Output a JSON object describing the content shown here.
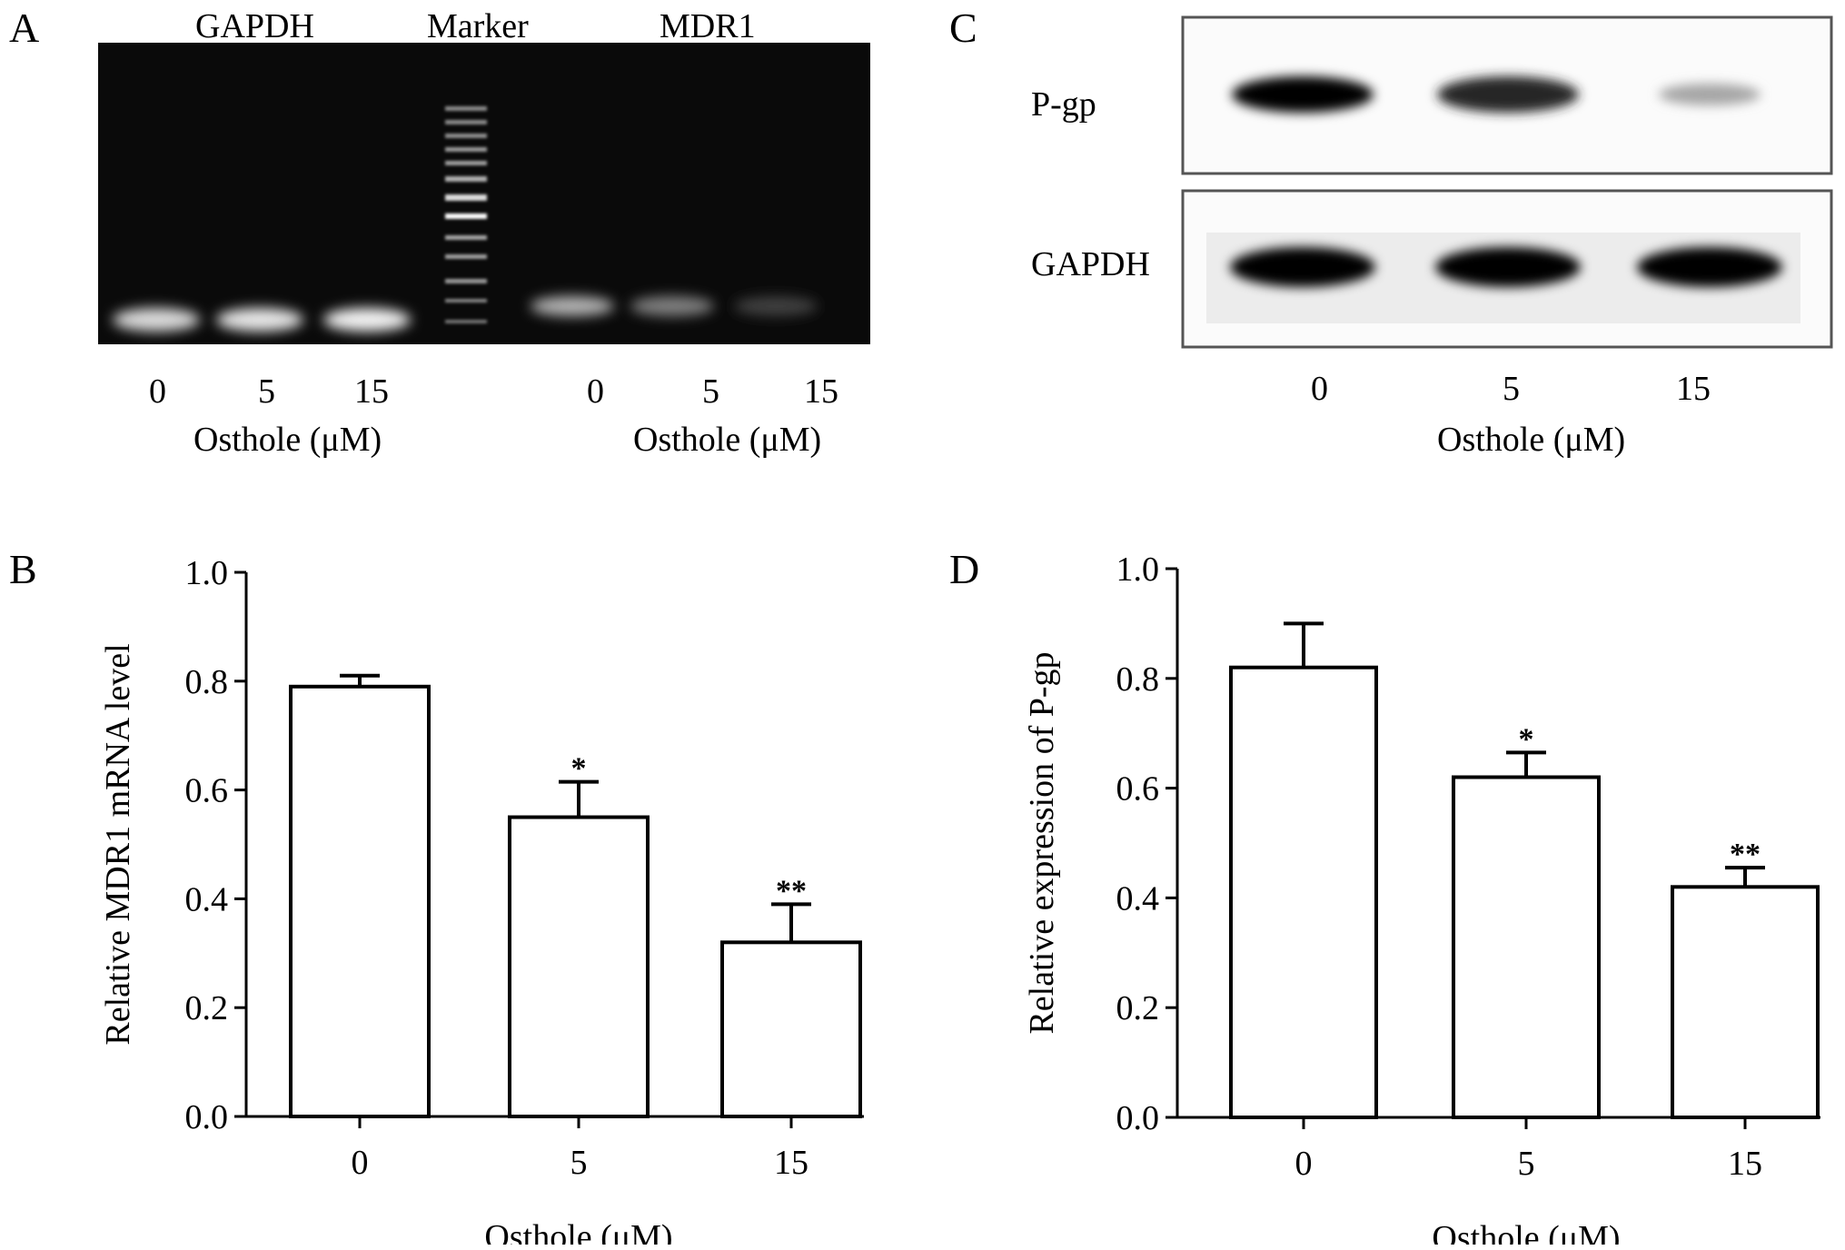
{
  "panels": {
    "A": {
      "letter": "A",
      "gel_headers": {
        "left": "GAPDH",
        "middle": "Marker",
        "right": "MDR1"
      },
      "left_doses": [
        "0",
        "5",
        "15"
      ],
      "right_doses": [
        "0",
        "5",
        "15"
      ],
      "left_xlabel": "Osthole (μM)",
      "right_xlabel": "Osthole (μM)",
      "band_intensity": {
        "GAPDH": [
          0.85,
          0.9,
          0.95
        ],
        "MDR1": [
          0.7,
          0.5,
          0.25
        ]
      }
    },
    "C": {
      "letter": "C",
      "row_labels": [
        "P-gp",
        "GAPDH"
      ],
      "doses": [
        "0",
        "5",
        "15"
      ],
      "xlabel": "Osthole (μM)",
      "band_intensity": {
        "P-gp": [
          1.0,
          0.85,
          0.35
        ],
        "GAPDH": [
          1.0,
          1.0,
          1.0
        ]
      }
    },
    "B": {
      "letter": "B"
    },
    "D": {
      "letter": "D"
    }
  },
  "chart_data": [
    {
      "panel": "B",
      "type": "bar",
      "categories": [
        "0",
        "5",
        "15"
      ],
      "values": [
        0.79,
        0.55,
        0.32
      ],
      "errors": [
        0.02,
        0.065,
        0.07
      ],
      "significance": [
        "",
        "*",
        "**"
      ],
      "xlabel": "Osthole (μM)",
      "ylabel": "Relative MDR1 mRNA level",
      "ylim": [
        0,
        1.0
      ],
      "yticks": [
        "0.0",
        "0.2",
        "0.4",
        "0.6",
        "0.8",
        "1.0"
      ]
    },
    {
      "panel": "D",
      "type": "bar",
      "categories": [
        "0",
        "5",
        "15"
      ],
      "values": [
        0.82,
        0.62,
        0.42
      ],
      "errors": [
        0.08,
        0.045,
        0.035
      ],
      "significance": [
        "",
        "*",
        "**"
      ],
      "xlabel": "Osthole (μM)",
      "ylabel": "Relative expression of  P-gp",
      "ylim": [
        0,
        1.0
      ],
      "yticks": [
        "0.0",
        "0.2",
        "0.4",
        "0.6",
        "0.8",
        "1.0"
      ]
    }
  ]
}
